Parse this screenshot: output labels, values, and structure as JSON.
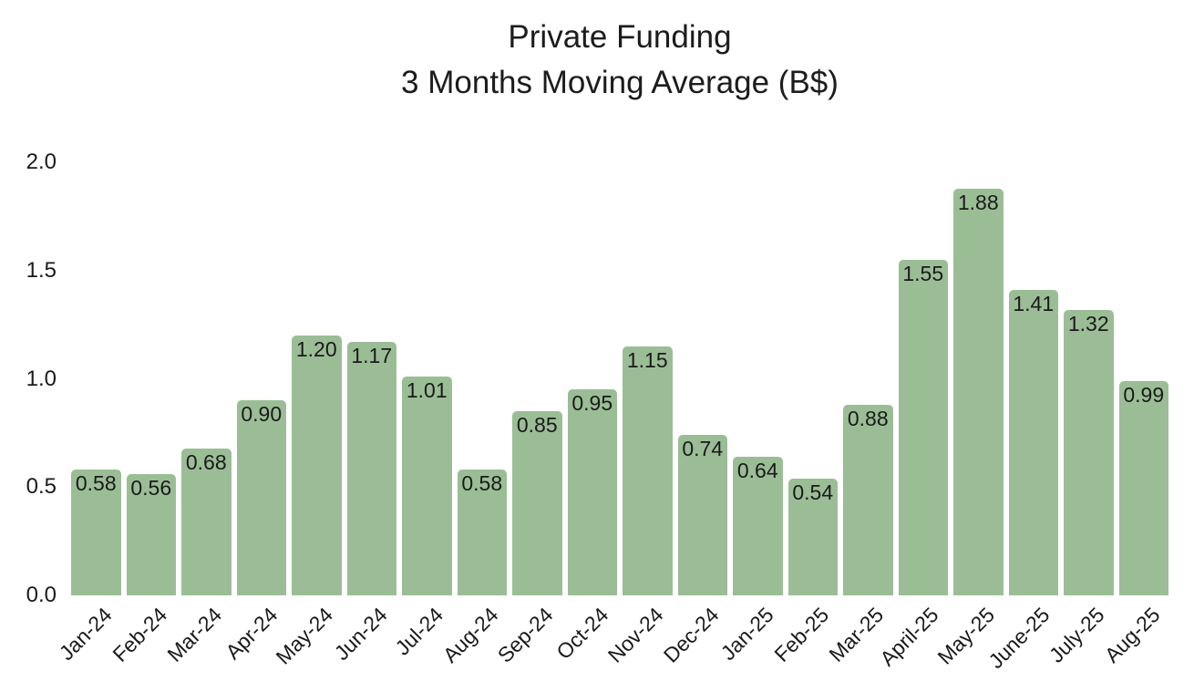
{
  "title": {
    "line1": "Private Funding",
    "line2": "3 Months Moving Average (B$)"
  },
  "chart_data": {
    "type": "bar",
    "title": "Private Funding — 3 Months Moving Average (B$)",
    "categories": [
      "Jan-24",
      "Feb-24",
      "Mar-24",
      "Apr-24",
      "May-24",
      "Jun-24",
      "Jul-24",
      "Aug-24",
      "Sep-24",
      "Oct-24",
      "Nov-24",
      "Dec-24",
      "Jan-25",
      "Feb-25",
      "Mar-25",
      "April-25",
      "May-25",
      "June-25",
      "July-25",
      "Aug-25"
    ],
    "values": [
      0.58,
      0.56,
      0.68,
      0.9,
      1.2,
      1.17,
      1.01,
      0.58,
      0.85,
      0.95,
      1.15,
      0.74,
      0.64,
      0.54,
      0.88,
      1.55,
      1.88,
      1.41,
      1.32,
      0.99
    ],
    "data_labels": [
      "0.58",
      "0.56",
      "0.68",
      "0.90",
      "1.20",
      "1.17",
      "1.01",
      "0.58",
      "0.85",
      "0.95",
      "1.15",
      "0.74",
      "0.64",
      "0.54",
      "0.88",
      "1.55",
      "1.88",
      "1.41",
      "1.32",
      "0.99"
    ],
    "xlabel": "",
    "ylabel": "",
    "ylim": [
      0,
      2.0
    ],
    "yticks": [
      0.0,
      0.5,
      1.0,
      1.5,
      2.0
    ],
    "ytick_labels": [
      "0.0",
      "0.5",
      "1.0",
      "1.5",
      "2.0"
    ],
    "xtick_rotation_deg": 45,
    "grid": false,
    "legend": false,
    "bar_color": "#9BBD96",
    "text_color": "#1a1a1a",
    "background_color": "#ffffff",
    "value_label_position": "inside-top"
  }
}
